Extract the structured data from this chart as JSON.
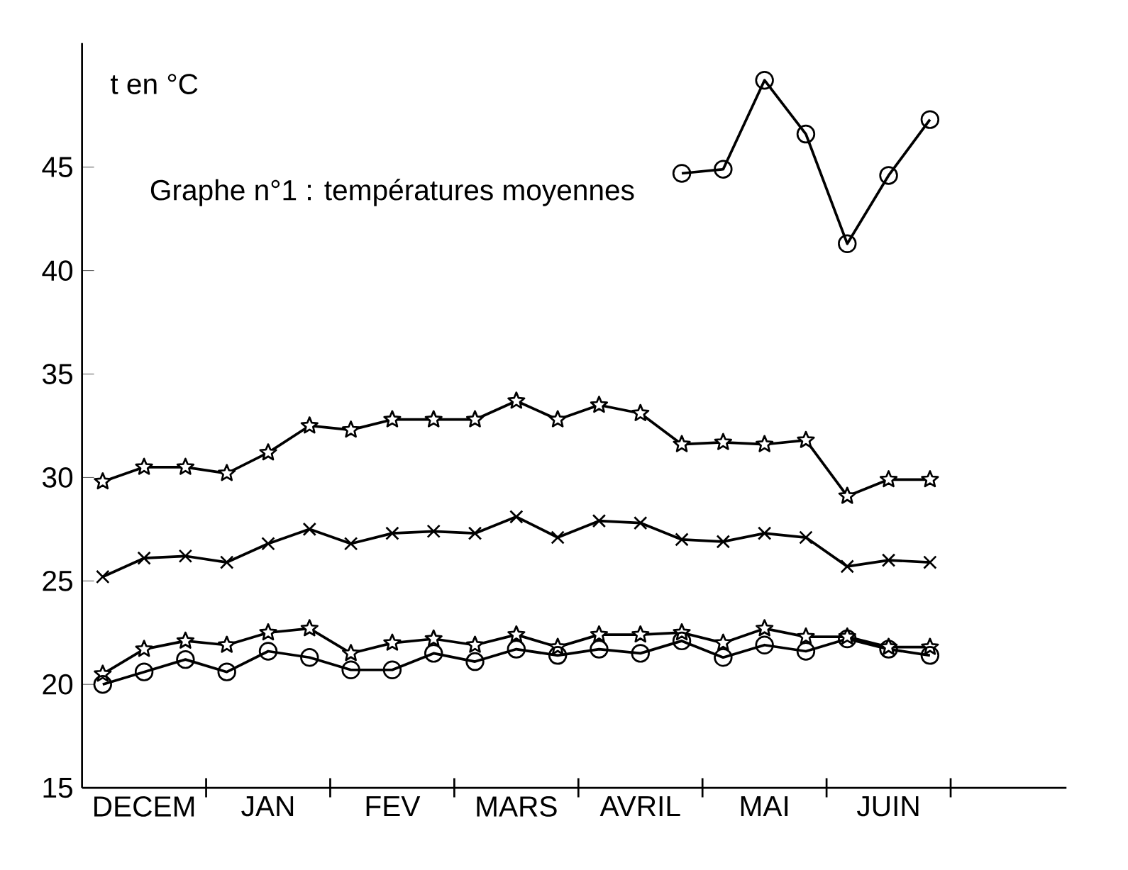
{
  "chart_data": {
    "type": "line",
    "title": "Graphe n°1 : températures moyennes",
    "ylabel": "t en °C",
    "categories": [
      null,
      "DECEM",
      null,
      null,
      "JAN",
      null,
      null,
      "FEV",
      null,
      null,
      "MARS",
      null,
      null,
      "AVRIL",
      null,
      null,
      "MAI",
      null,
      null,
      "JUIN",
      null
    ],
    "ylim": [
      15,
      51
    ],
    "yticks": [
      15,
      20,
      25,
      30,
      35,
      40,
      45
    ],
    "grid": false,
    "line_style": "solid",
    "series": [
      {
        "color": "#000000",
        "marker": "circle",
        "values": [
          null,
          null,
          null,
          null,
          null,
          null,
          null,
          null,
          null,
          null,
          null,
          null,
          null,
          null,
          44.7,
          44.9,
          49.2,
          46.6,
          41.3,
          44.6,
          47.3
        ]
      },
      {
        "color": "#000000",
        "marker": "star",
        "values": [
          29.8,
          30.5,
          30.5,
          30.2,
          31.2,
          32.5,
          32.3,
          32.8,
          32.8,
          32.8,
          33.7,
          32.8,
          33.5,
          33.1,
          31.6,
          31.7,
          31.6,
          31.8,
          29.1,
          29.9,
          29.9
        ]
      },
      {
        "color": "#000000",
        "marker": "cross",
        "values": [
          25.2,
          26.1,
          26.2,
          25.9,
          26.8,
          27.5,
          26.8,
          27.3,
          27.4,
          27.3,
          28.1,
          27.1,
          27.9,
          27.8,
          27.0,
          26.9,
          27.3,
          27.1,
          25.7,
          26.0,
          25.9
        ]
      },
      {
        "color": "#000000",
        "marker": "star",
        "values": [
          20.5,
          21.7,
          22.1,
          21.9,
          22.5,
          22.7,
          21.5,
          22.0,
          22.2,
          21.9,
          22.4,
          21.8,
          22.4,
          22.4,
          22.5,
          22.0,
          22.7,
          22.3,
          22.3,
          21.8,
          21.8
        ]
      },
      {
        "color": "#000000",
        "marker": "circle",
        "values": [
          20.0,
          20.6,
          21.2,
          20.6,
          21.6,
          21.3,
          20.7,
          20.7,
          21.5,
          21.1,
          21.7,
          21.4,
          21.7,
          21.5,
          22.1,
          21.3,
          21.9,
          21.6,
          22.2,
          21.7,
          21.4
        ]
      }
    ]
  }
}
